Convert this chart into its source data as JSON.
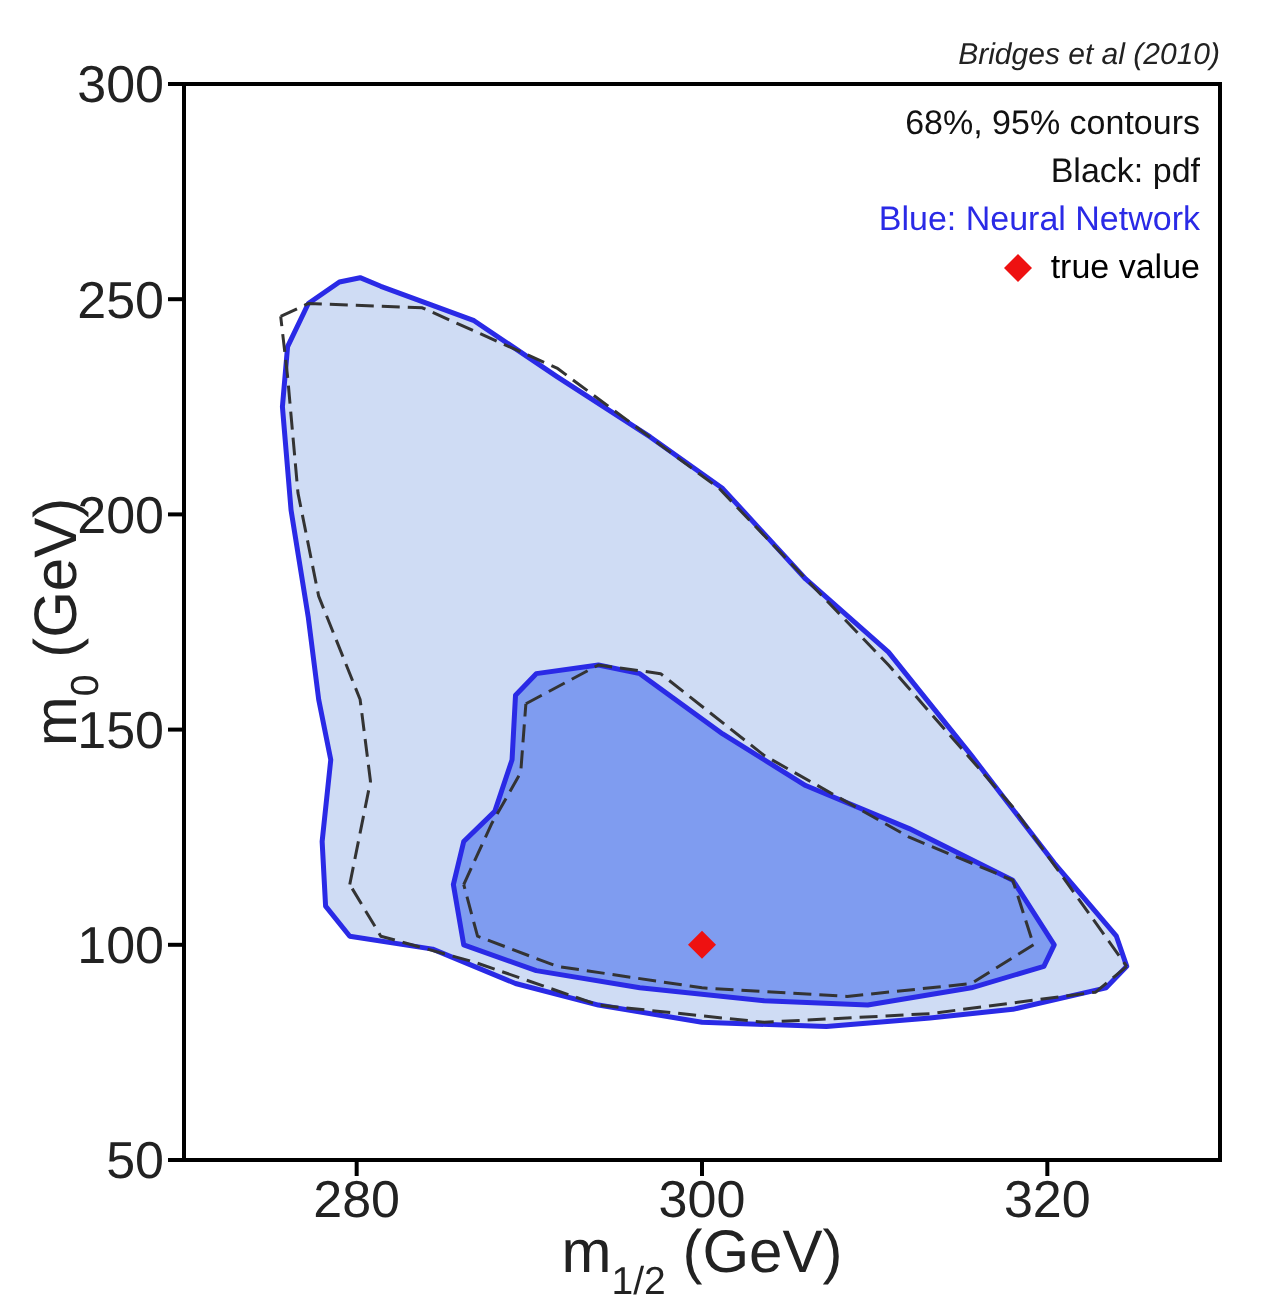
{
  "chart_data": {
    "type": "line",
    "xlabel": "m$_{1/2}$ (GeV)",
    "ylabel": "m$_{0}$ (GeV)",
    "xlim": [
      270,
      330
    ],
    "ylim": [
      50,
      300
    ],
    "xticks": [
      280,
      300,
      320
    ],
    "yticks": [
      50,
      100,
      150,
      200,
      250,
      300
    ],
    "grid": false,
    "legend": "top right",
    "line_style": "dashed",
    "annotations": [
      "Bridges et al (2010)",
      "68%, 95% contours",
      "Black: pdf",
      "Blue: Neural Network"
    ],
    "series": [
      {
        "type": "area",
        "color": "#cfdcf4",
        "x": [
          280.2,
          281.4,
          286.8,
          291.6,
          297,
          301.2,
          306,
          310.8,
          315.6,
          320.4,
          324,
          324.6,
          323.4,
          318,
          313.2,
          307.2,
          300,
          294,
          289.2,
          284.4,
          279.6,
          278.2,
          278,
          278.5,
          277.8,
          277.2,
          276.2,
          275.7,
          276,
          277.2,
          279,
          280.2
        ],
        "values": [
          255,
          253,
          245,
          232,
          218,
          206,
          185,
          168,
          144,
          119,
          102,
          95,
          90,
          85,
          83,
          81,
          82,
          86,
          91,
          99,
          102,
          109,
          124,
          143,
          157,
          176,
          201,
          225,
          239,
          249,
          254,
          255
        ]
      },
      {
        "type": "area",
        "color": "#7f9cf0",
        "x": [
          290.4,
          294,
          296.4,
          301.2,
          306,
          312,
          318,
          320.4,
          319.8,
          315.6,
          309.6,
          303.6,
          296.4,
          290.4,
          286.2,
          285.6,
          286.2,
          288,
          289,
          289.2,
          290.4
        ],
        "values": [
          163,
          165,
          163,
          149,
          137,
          127,
          115,
          100,
          95,
          90,
          86,
          87,
          90,
          94,
          100,
          114,
          124,
          131,
          143,
          158,
          163
        ]
      },
      {
        "color": "#333333",
        "x": [
          275.6,
          277.2,
          283.8,
          291.6,
          301,
          310.8,
          318,
          324.6
        ],
        "values": [
          246,
          249,
          248,
          234,
          206,
          165,
          132,
          95
        ]
      },
      {
        "color": "#333333",
        "x": [
          324.6,
          322.8,
          313.2,
          303.6,
          294,
          286.8,
          281.4,
          279.6
        ],
        "values": [
          95,
          89,
          84,
          82,
          86,
          96,
          102,
          114
        ]
      },
      {
        "color": "#333333",
        "x": [
          279.6,
          280.8,
          280.2,
          277.8,
          276.6,
          276,
          275.6
        ],
        "values": [
          114,
          138,
          157,
          181,
          205,
          232,
          246
        ]
      },
      {
        "color": "#333333",
        "x": [
          289.8,
          294,
          297.6,
          303.6,
          312,
          318,
          319.2
        ],
        "values": [
          156,
          165,
          163,
          144,
          125,
          115,
          100
        ]
      },
      {
        "color": "#333333",
        "x": [
          319.2,
          315.6,
          308.4,
          300,
          291.6,
          287,
          286.2
        ],
        "values": [
          100,
          91,
          88,
          90,
          95,
          102,
          114
        ]
      },
      {
        "color": "#333333",
        "x": [
          286.2,
          287.8,
          289.5,
          289.8
        ],
        "values": [
          114,
          128,
          140,
          156
        ]
      },
      {
        "type": "scatter",
        "marker": "diamond",
        "name": "true value",
        "color": "#ee1111",
        "x": [
          300
        ],
        "values": [
          100
        ]
      }
    ]
  }
}
